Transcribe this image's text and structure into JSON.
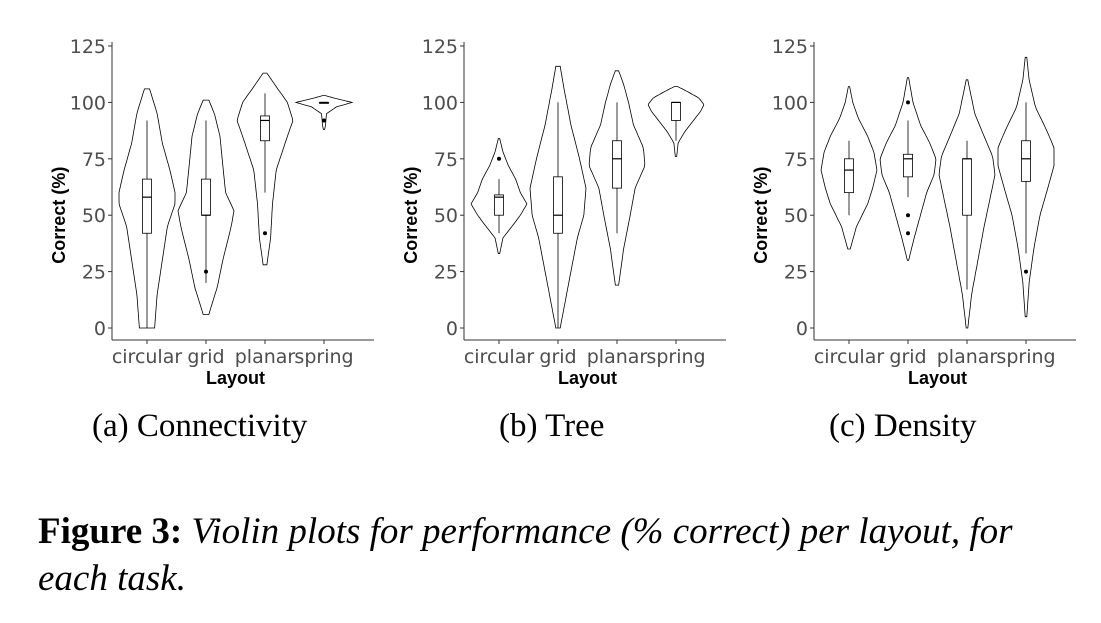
{
  "chart_data": [
    {
      "type": "violin",
      "subcaption_label": "(a)",
      "subcaption_text": "Connectivity",
      "xlabel": "Layout",
      "ylabel": "Correct (%)",
      "ylim": [
        0,
        125
      ],
      "yticks": [
        0,
        25,
        50,
        75,
        100,
        125
      ],
      "categories": [
        "circular",
        "grid",
        "planar",
        "spring"
      ],
      "violins": [
        {
          "category": "circular",
          "range": [
            0,
            106
          ],
          "density": [
            [
              0,
              0.03
            ],
            [
              15,
              0.04
            ],
            [
              30,
              0.06
            ],
            [
              45,
              0.08
            ],
            [
              55,
              0.11
            ],
            [
              60,
              0.11
            ],
            [
              70,
              0.09
            ],
            [
              82,
              0.06
            ],
            [
              95,
              0.04
            ],
            [
              106,
              0.01
            ]
          ],
          "box": {
            "q1": 42,
            "median": 58,
            "q3": 66,
            "whisker_low": 0,
            "whisker_high": 92
          },
          "outliers": []
        },
        {
          "category": "grid",
          "range": [
            6,
            101
          ],
          "density": [
            [
              6,
              0.01
            ],
            [
              18,
              0.04
            ],
            [
              30,
              0.06
            ],
            [
              45,
              0.09
            ],
            [
              52,
              0.1
            ],
            [
              60,
              0.07
            ],
            [
              72,
              0.06
            ],
            [
              85,
              0.05
            ],
            [
              95,
              0.03
            ],
            [
              101,
              0.01
            ]
          ],
          "box": {
            "q1": 50,
            "median": 50,
            "q3": 66,
            "whisker_low": 20,
            "whisker_high": 92
          },
          "outliers": [
            25
          ]
        },
        {
          "category": "planar",
          "range": [
            28,
            113
          ],
          "density": [
            [
              28,
              0.01
            ],
            [
              40,
              0.03
            ],
            [
              55,
              0.04
            ],
            [
              70,
              0.06
            ],
            [
              85,
              0.12
            ],
            [
              92,
              0.15
            ],
            [
              100,
              0.12
            ],
            [
              107,
              0.06
            ],
            [
              113,
              0.01
            ]
          ],
          "box": {
            "q1": 83,
            "median": 92,
            "q3": 94,
            "whisker_low": 60,
            "whisker_high": 104
          },
          "outliers": [
            42
          ]
        },
        {
          "category": "spring",
          "range": [
            88,
            103
          ],
          "density": [
            [
              88,
              0.02
            ],
            [
              90,
              0.05
            ],
            [
              92,
              0.06
            ],
            [
              95,
              0.08
            ],
            [
              98,
              0.4
            ],
            [
              100,
              0.9
            ],
            [
              101,
              0.6
            ],
            [
              102,
              0.3
            ],
            [
              103,
              0.05
            ]
          ],
          "box": {
            "q1": 100,
            "median": 100,
            "q3": 100,
            "whisker_low": 100,
            "whisker_high": 100
          },
          "outliers": [
            92
          ]
        }
      ]
    },
    {
      "type": "violin",
      "subcaption_label": "(b)",
      "subcaption_text": "Tree",
      "xlabel": "Layout",
      "ylabel": "Correct (%)",
      "ylim": [
        0,
        125
      ],
      "yticks": [
        0,
        25,
        50,
        75,
        100,
        125
      ],
      "categories": [
        "circular",
        "grid",
        "planar",
        "spring"
      ],
      "violins": [
        {
          "category": "circular",
          "range": [
            33,
            84
          ],
          "density": [
            [
              33,
              0.01
            ],
            [
              40,
              0.06
            ],
            [
              46,
              0.22
            ],
            [
              50,
              0.32
            ],
            [
              55,
              0.42
            ],
            [
              60,
              0.32
            ],
            [
              66,
              0.25
            ],
            [
              72,
              0.14
            ],
            [
              78,
              0.06
            ],
            [
              84,
              0.01
            ]
          ],
          "box": {
            "q1": 50,
            "median": 58,
            "q3": 59,
            "whisker_low": 42,
            "whisker_high": 66
          },
          "outliers": [
            75
          ]
        },
        {
          "category": "grid",
          "range": [
            0,
            116
          ],
          "density": [
            [
              0,
              0.01
            ],
            [
              10,
              0.03
            ],
            [
              25,
              0.06
            ],
            [
              40,
              0.09
            ],
            [
              50,
              0.12
            ],
            [
              62,
              0.13
            ],
            [
              75,
              0.1
            ],
            [
              90,
              0.06
            ],
            [
              105,
              0.03
            ],
            [
              116,
              0.01
            ]
          ],
          "box": {
            "q1": 42,
            "median": 50,
            "q3": 67,
            "whisker_low": 0,
            "whisker_high": 100
          },
          "outliers": []
        },
        {
          "category": "planar",
          "range": [
            19,
            114
          ],
          "density": [
            [
              19,
              0.01
            ],
            [
              35,
              0.04
            ],
            [
              50,
              0.08
            ],
            [
              62,
              0.11
            ],
            [
              72,
              0.17
            ],
            [
              80,
              0.16
            ],
            [
              90,
              0.1
            ],
            [
              100,
              0.07
            ],
            [
              108,
              0.04
            ],
            [
              114,
              0.01
            ]
          ],
          "box": {
            "q1": 62,
            "median": 75,
            "q3": 83,
            "whisker_low": 42,
            "whisker_high": 100
          },
          "outliers": []
        },
        {
          "category": "spring",
          "range": [
            76,
            107
          ],
          "density": [
            [
              76,
              0.02
            ],
            [
              82,
              0.06
            ],
            [
              87,
              0.25
            ],
            [
              92,
              0.5
            ],
            [
              96,
              0.7
            ],
            [
              99,
              0.8
            ],
            [
              102,
              0.65
            ],
            [
              105,
              0.3
            ],
            [
              107,
              0.05
            ]
          ],
          "box": {
            "q1": 92,
            "median": 100,
            "q3": 100,
            "whisker_low": 83,
            "whisker_high": 100
          },
          "outliers": []
        }
      ]
    },
    {
      "type": "violin",
      "subcaption_label": "(c)",
      "subcaption_text": "Density",
      "xlabel": "Layout",
      "ylabel": "Correct (%)",
      "ylim": [
        0,
        125
      ],
      "yticks": [
        0,
        25,
        50,
        75,
        100,
        125
      ],
      "categories": [
        "circular",
        "grid",
        "planar",
        "spring"
      ],
      "violins": [
        {
          "category": "circular",
          "range": [
            35,
            107
          ],
          "density": [
            [
              35,
              0.02
            ],
            [
              45,
              0.12
            ],
            [
              55,
              0.3
            ],
            [
              62,
              0.38
            ],
            [
              70,
              0.45
            ],
            [
              78,
              0.4
            ],
            [
              85,
              0.3
            ],
            [
              93,
              0.15
            ],
            [
              100,
              0.06
            ],
            [
              107,
              0.01
            ]
          ],
          "box": {
            "q1": 60,
            "median": 70,
            "q3": 75,
            "whisker_low": 50,
            "whisker_high": 83
          },
          "outliers": []
        },
        {
          "category": "grid",
          "range": [
            30,
            111
          ],
          "density": [
            [
              30,
              0.01
            ],
            [
              40,
              0.1
            ],
            [
              50,
              0.2
            ],
            [
              60,
              0.3
            ],
            [
              68,
              0.42
            ],
            [
              75,
              0.45
            ],
            [
              82,
              0.35
            ],
            [
              90,
              0.2
            ],
            [
              100,
              0.08
            ],
            [
              111,
              0.01
            ]
          ],
          "box": {
            "q1": 67,
            "median": 75,
            "q3": 77,
            "whisker_low": 58,
            "whisker_high": 92
          },
          "outliers": [
            100,
            50,
            42
          ]
        },
        {
          "category": "planar",
          "range": [
            0,
            110
          ],
          "density": [
            [
              0,
              0.01
            ],
            [
              15,
              0.06
            ],
            [
              30,
              0.14
            ],
            [
              45,
              0.22
            ],
            [
              58,
              0.3
            ],
            [
              68,
              0.36
            ],
            [
              76,
              0.33
            ],
            [
              85,
              0.22
            ],
            [
              95,
              0.1
            ],
            [
              110,
              0.01
            ]
          ],
          "box": {
            "q1": 50,
            "median": 75,
            "q3": 75,
            "whisker_low": 17,
            "whisker_high": 83
          },
          "outliers": []
        },
        {
          "category": "spring",
          "range": [
            5,
            120
          ],
          "density": [
            [
              5,
              0.01
            ],
            [
              20,
              0.04
            ],
            [
              35,
              0.1
            ],
            [
              50,
              0.18
            ],
            [
              62,
              0.28
            ],
            [
              72,
              0.36
            ],
            [
              80,
              0.36
            ],
            [
              88,
              0.26
            ],
            [
              98,
              0.12
            ],
            [
              110,
              0.04
            ],
            [
              120,
              0.01
            ]
          ],
          "box": {
            "q1": 65,
            "median": 75,
            "q3": 83,
            "whisker_low": 33,
            "whisker_high": 100
          },
          "outliers": [
            25
          ]
        }
      ]
    }
  ],
  "figure_caption": {
    "lead": "Figure 3:",
    "body": "Violin plots for performance (% correct) per layout, for each task."
  }
}
